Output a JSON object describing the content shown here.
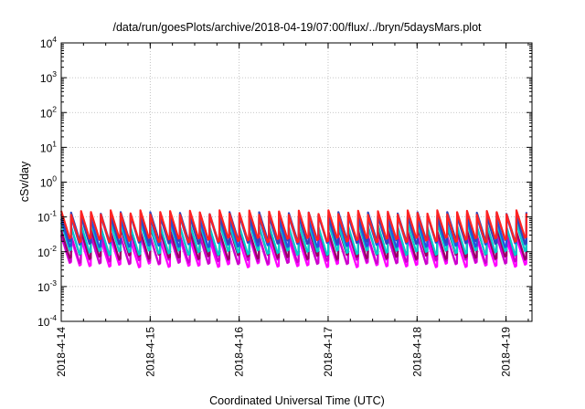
{
  "chart_data": {
    "type": "line",
    "title": "/data/run/goesPlots/archive/2018-04-19/07:00/flux/../bryn/5daysMars.plot",
    "xlabel": "Coordinated Universal Time (UTC)",
    "ylabel": "cSv/day",
    "yscale": "log",
    "ylim": [
      0.0001,
      10000
    ],
    "y_ticks": [
      {
        "base": "10",
        "exp": "4"
      },
      {
        "base": "10",
        "exp": "3"
      },
      {
        "base": "10",
        "exp": "2"
      },
      {
        "base": "10",
        "exp": "1"
      },
      {
        "base": "10",
        "exp": "0"
      },
      {
        "base": "10",
        "exp": "-1"
      },
      {
        "base": "10",
        "exp": "-2"
      },
      {
        "base": "10",
        "exp": "-3"
      },
      {
        "base": "10",
        "exp": "-4"
      }
    ],
    "x_ticks": [
      "2018-4-14",
      "2018-4-15",
      "2018-4-16",
      "2018-4-17",
      "2018-4-18",
      "2018-4-19"
    ],
    "x_range": [
      "2018-04-14 00:00",
      "2018-04-19 07:00"
    ],
    "grid": true,
    "pattern": "sawtooth",
    "cycles_per_day": 9,
    "cycle_hours": 2.67,
    "colors": [
      "#ff00ff",
      "#cc00cc",
      "#990066",
      "#00cccc",
      "#2255dd",
      "#3344bb",
      "#ff2222"
    ],
    "series": [
      {
        "color": "#ff00ff",
        "peak": 0.025,
        "trough": 0.0042
      },
      {
        "color": "#cc00cc",
        "peak": 0.032,
        "trough": 0.0052
      },
      {
        "color": "#990066",
        "peak": 0.045,
        "trough": 0.0072
      },
      {
        "color": "#00cccc",
        "peak": 0.06,
        "trough": 0.0095
      },
      {
        "color": "#2255dd",
        "peak": 0.1,
        "trough": 0.016
      },
      {
        "color": "#3344bb",
        "peak": 0.12,
        "trough": 0.02
      },
      {
        "color": "#ff2222",
        "peak": 0.135,
        "trough": 0.022
      }
    ]
  }
}
